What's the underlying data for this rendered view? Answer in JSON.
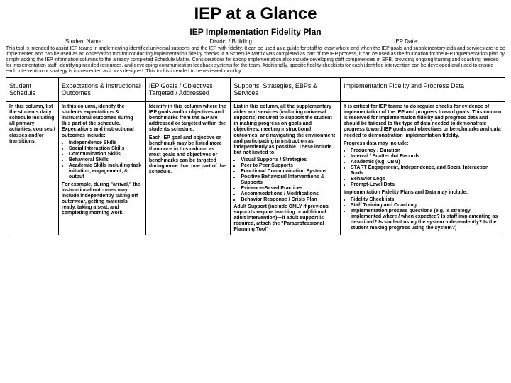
{
  "title": "IEP at a Glance",
  "subtitle": "IEP Implementation Fidelity Plan",
  "meta": {
    "student_label": "Student Name:",
    "district_label": "District / Building:",
    "date_label": "IEP Date:"
  },
  "intro": "This tool is intended to assist IEP teams in implementing identified universal supports and the IEP with fidelity. It can be used as a guide for staff to know where and when the IEP goals and supplementary aids and services are to be implemented and can be used as an observation tool for conducting implementation fidelity checks. If a Schedule Matrix was completed as part of the IEP process, it can be used as the foundation for the IEP Implementation plan by simply adding the IEP information columns to the already completed Schedule Matrix. Considerations for strong implementation also include developing staff competencies in EPB, providing ongoing training and coaching needed for implementation staff, identifying needed resources, and developing communication feedback systems for the team. Additionally, specific fidelity checklists for each identified intervention can be developed and used to ensure each intervention or strategy is implemented as it was designed. This tool is intended to be reviewed monthly.",
  "headers": {
    "c1": "Student Schedule",
    "c2": "Expectations & Instructional Outcomes",
    "c3": "IEP Goals / Objectives Targeted / Addressed",
    "c4": "Supports, Strategies, EBPs & Services",
    "c5": "Implementation Fidelity and Progress Data"
  },
  "row": {
    "c1": "In this column, list the students daily schedule including all primary activities, courses / classes and/or transitions.",
    "c2_intro": "In this column, identify the students expectations & instructional outcomes during this part of the schedule. Expectations and instructional outcomes include:",
    "c2_list": [
      "Independence Skills",
      "Social Interaction Skills",
      "Communication Skills",
      "Behavioral Skills",
      "Academic Skills including task initiation, engagement, & output"
    ],
    "c2_example": "For example, during \"arrival,\" the instructional outcomes may include independently taking off outerwear, getting materials ready, taking a seat, and completing morning work.",
    "c3_intro": "Identify in this column where the IEP goals and/or objectives and benchmarks from the IEP are addressed or targeted within the students schedule.",
    "c3_body": "Each IEP goal and objective or benchmark may be listed more than once in this column as most goals and objectives or benchmarks can be targeted during more than one part of the schedule.",
    "c4_intro": "List in this column, all the supplementary aides and services (including universal supports) required to support the student in making progress on goals and objectives, meeting instructional outcomes, and navigating the environment and participating in instruction as independently as possible. These include but not limited to:",
    "c4_list": [
      "Visual Supports / Strategies",
      "Peer to Peer Supports",
      "Functional Communication Systems",
      "Positive Behavioral Interventions & Supports",
      "Evidence-Based Practices",
      "Accommodations / Modifications",
      "Behavior Response / Crisis Plan"
    ],
    "c4_body": "Adult Support (include ONLY if previous supports require teaching or additional adult intervention)—if adult support is required, attach the \"Paraprofessional Planning Tool\"",
    "c5_intro": "It is critical for IEP teams to do regular checks for evidence of implementation of the IEP and progress toward goals. This column is reserved for implementation fidelity and progress data and should be tailored to the type of data needed to demonstrate progress toward IEP goals and objectives or benchmarks and data needed to demonstration implementation fidelity.",
    "c5_progress_label": "Progress data may include:",
    "c5_progress_list": [
      "Frequency / Duration",
      "Interval / Scatterplot Records",
      "Academic (e.g. CBM)",
      "START Engagement, Independence, and Social Interaction Tools",
      "Behavior Logs",
      "Prompt-Level Data"
    ],
    "c5_plan_label": "Implementation Fidelity Plans and Data may include:",
    "c5_plan_list": [
      "Fidelity Checklists",
      "Staff Training and Coaching",
      "Implementation process questions (e.g. is strategy implemented where / when expected? Is staff implementing as described? Is student using the system independently? Is the student making progress using the system?)"
    ]
  }
}
